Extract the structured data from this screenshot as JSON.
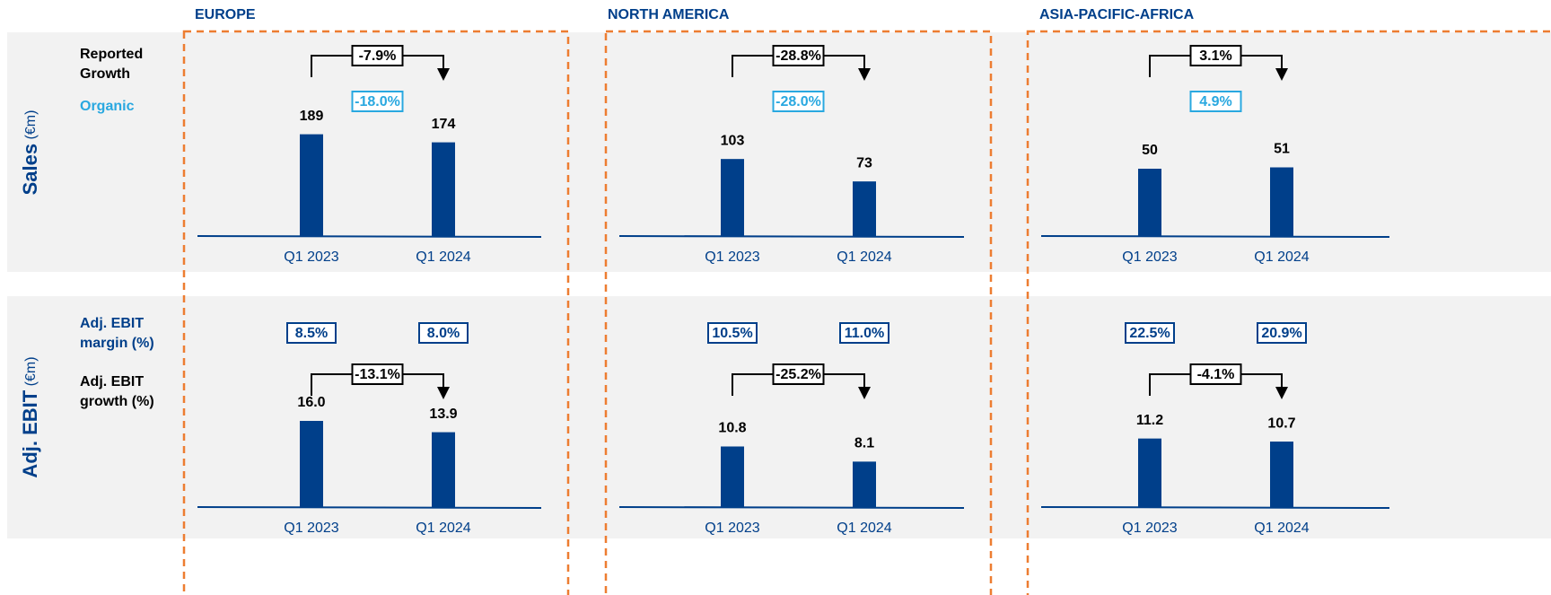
{
  "regions": [
    "EUROPE",
    "NORTH AMERICA",
    "ASIA-PACIFIC-AFRICA"
  ],
  "rows": [
    {
      "title": "Sales",
      "unit": "(€m)",
      "labels": [
        [
          "Reported",
          "Growth"
        ],
        [
          "Organic"
        ]
      ]
    },
    {
      "title": "Adj. EBIT",
      "unit": "(€m)",
      "labels": [
        [
          "Adj. EBIT",
          "margin (%)"
        ],
        [
          "Adj. EBIT",
          "growth (%)"
        ]
      ]
    }
  ],
  "chart_data": [
    {
      "type": "bar",
      "categories": [
        "Q1 2023",
        "Q1 2024"
      ],
      "values": [
        189,
        174
      ],
      "color": "#003f8a",
      "ylim": [
        0,
        250
      ],
      "growth": "-7.9%",
      "organic": "-18.0%"
    },
    {
      "type": "bar",
      "categories": [
        "Q1 2023",
        "Q1 2024"
      ],
      "values": [
        103,
        73
      ],
      "color": "#003f8a",
      "ylim": [
        0,
        180
      ],
      "growth": "-28.8%",
      "organic": "-28.0%"
    },
    {
      "type": "bar",
      "categories": [
        "Q1 2023",
        "Q1 2024"
      ],
      "values": [
        50,
        51
      ],
      "color": "#003f8a",
      "ylim": [
        0,
        100
      ],
      "growth": "3.1%",
      "organic": "4.9%"
    },
    {
      "type": "bar",
      "categories": [
        "Q1 2023",
        "Q1 2024"
      ],
      "values": [
        16.0,
        13.9
      ],
      "value_labels": [
        "16.0",
        "13.9"
      ],
      "color": "#003f8a",
      "ylim": [
        0,
        25
      ],
      "growth": "-13.1%",
      "margins": [
        "8.5%",
        "8.0%"
      ]
    },
    {
      "type": "bar",
      "categories": [
        "Q1 2023",
        "Q1 2024"
      ],
      "values": [
        10.8,
        8.1
      ],
      "color": "#003f8a",
      "ylim": [
        0,
        24
      ],
      "growth": "-25.2%",
      "margins": [
        "10.5%",
        "11.0%"
      ]
    },
    {
      "type": "bar",
      "categories": [
        "Q1 2023",
        "Q1 2024"
      ],
      "values": [
        11.2,
        10.7
      ],
      "color": "#003f8a",
      "ylim": [
        0,
        22
      ],
      "growth": "-4.1%",
      "margins": [
        "22.5%",
        "20.9%"
      ]
    }
  ]
}
